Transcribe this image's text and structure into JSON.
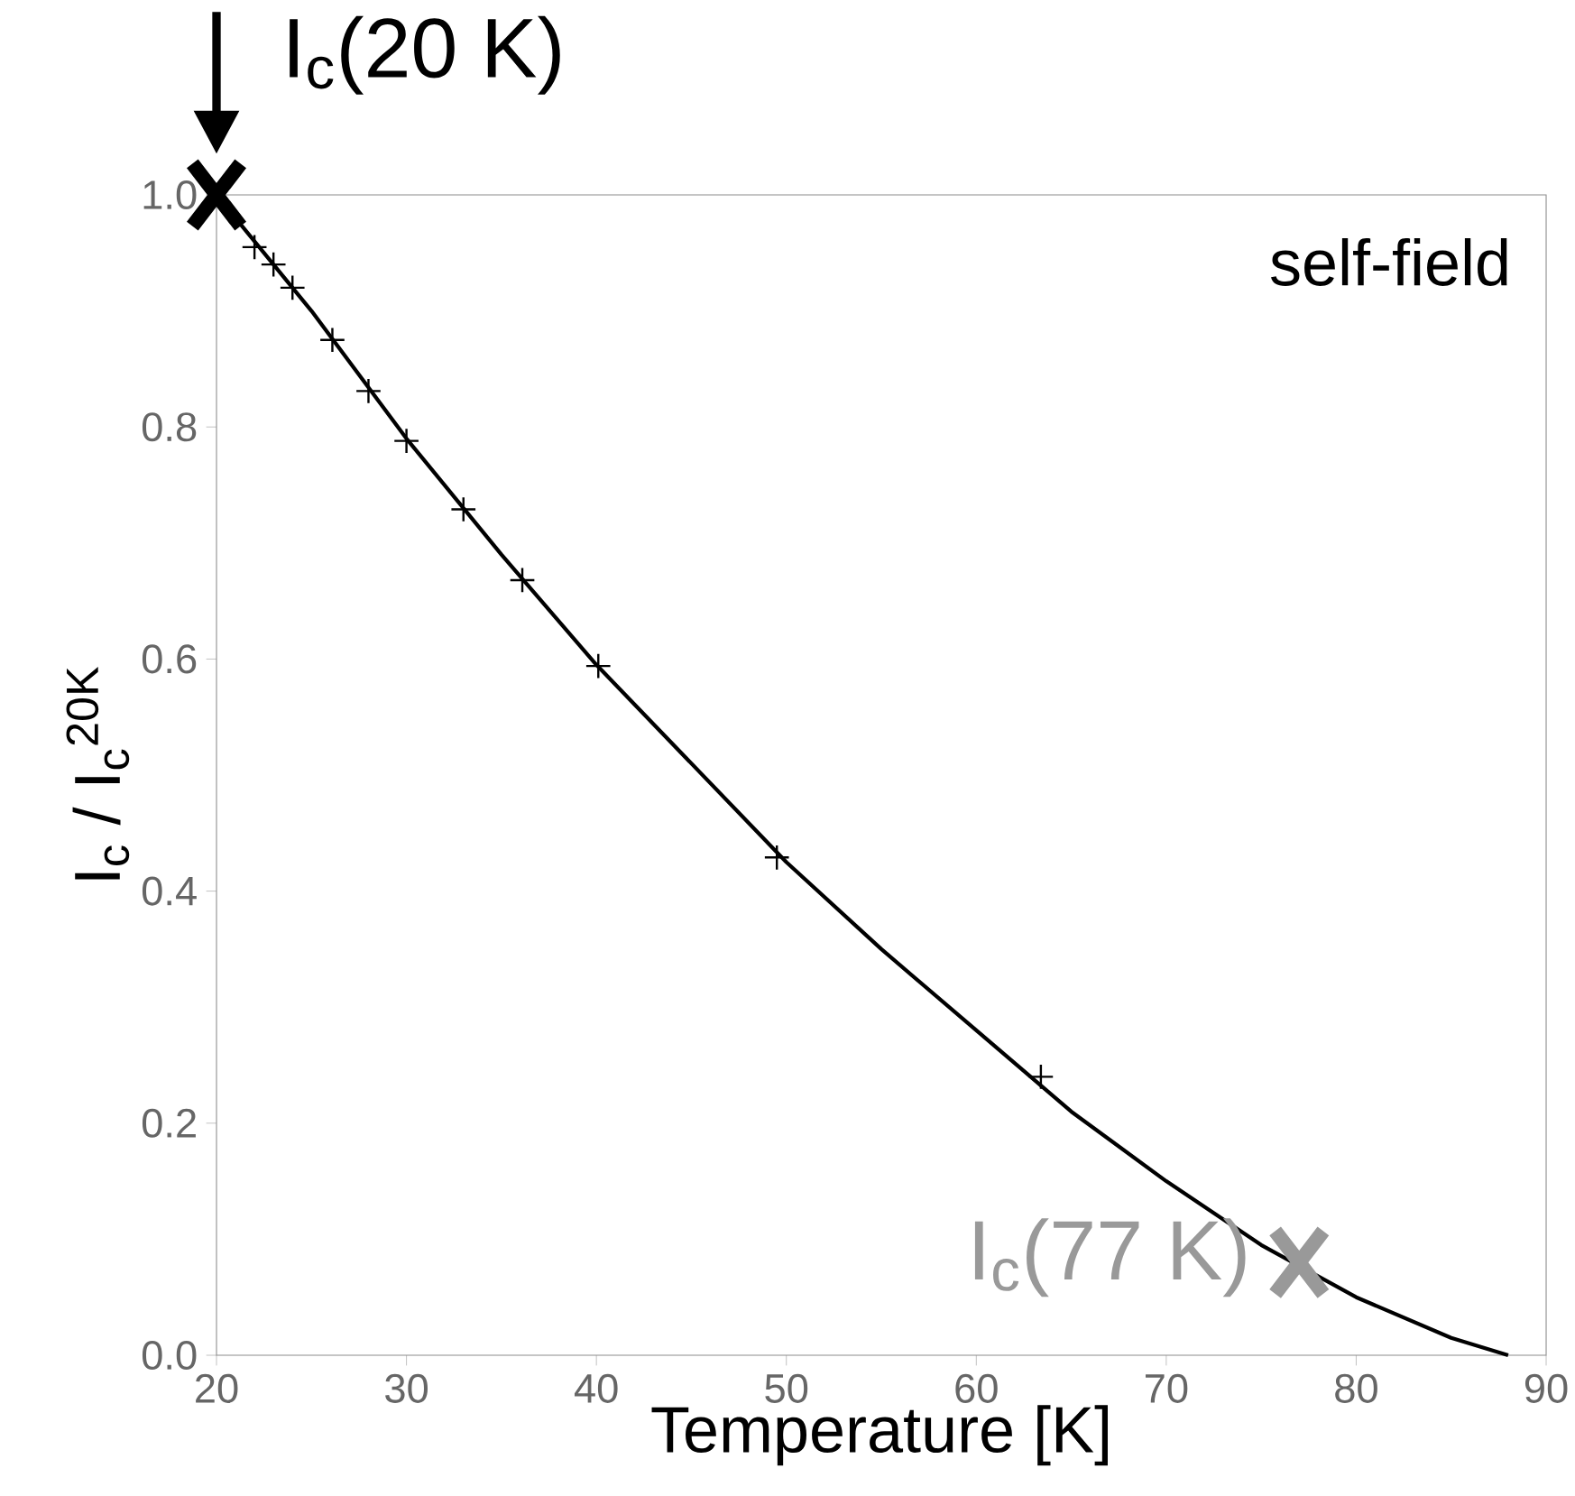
{
  "chart_data": {
    "type": "line",
    "xlabel": "Temperature [K]",
    "ylabel": "I$_{c}$ / I$_{c}$$^{20K}$",
    "xlim": [
      20,
      90
    ],
    "ylim": [
      0,
      1.0
    ],
    "xticks": [
      20,
      30,
      40,
      50,
      60,
      70,
      80,
      90
    ],
    "yticks": [
      {
        "value": 0,
        "label": "0.0"
      },
      {
        "value": 0.2,
        "label": "0.2"
      },
      {
        "value": 0.4,
        "label": "0.4"
      },
      {
        "value": 0.6,
        "label": "0.6"
      },
      {
        "value": 0.8,
        "label": "0.8"
      },
      {
        "value": 1.0,
        "label": "1.0"
      }
    ],
    "series": [
      {
        "color": "#000000",
        "marker": "none",
        "x": [
          20,
          25,
          30,
          35,
          40,
          45,
          50,
          55,
          60,
          65,
          70,
          75,
          80,
          85,
          88
        ],
        "values": [
          1.0,
          0.9,
          0.79,
          0.69,
          0.595,
          0.51,
          0.425,
          0.35,
          0.28,
          0.21,
          0.15,
          0.095,
          0.05,
          0.015,
          0.0
        ]
      },
      {
        "type": "scatter",
        "color": "#000000",
        "marker": "cross",
        "x": [
          22,
          23,
          24,
          26.1,
          28,
          30,
          33,
          36.1,
          40.1,
          49.5,
          63.4
        ],
        "values": [
          0.955,
          0.94,
          0.92,
          0.875,
          0.831,
          0.788,
          0.729,
          0.668,
          0.594,
          0.429,
          0.24
        ]
      }
    ],
    "annotations": [
      {
        "text": "I$_{c}$(20 K)",
        "x": 20,
        "y": 1.0
      },
      {
        "text": "I$_{c}$(77 K)",
        "x": 77,
        "y": 0.08
      },
      "self-field"
    ],
    "grid": false
  }
}
